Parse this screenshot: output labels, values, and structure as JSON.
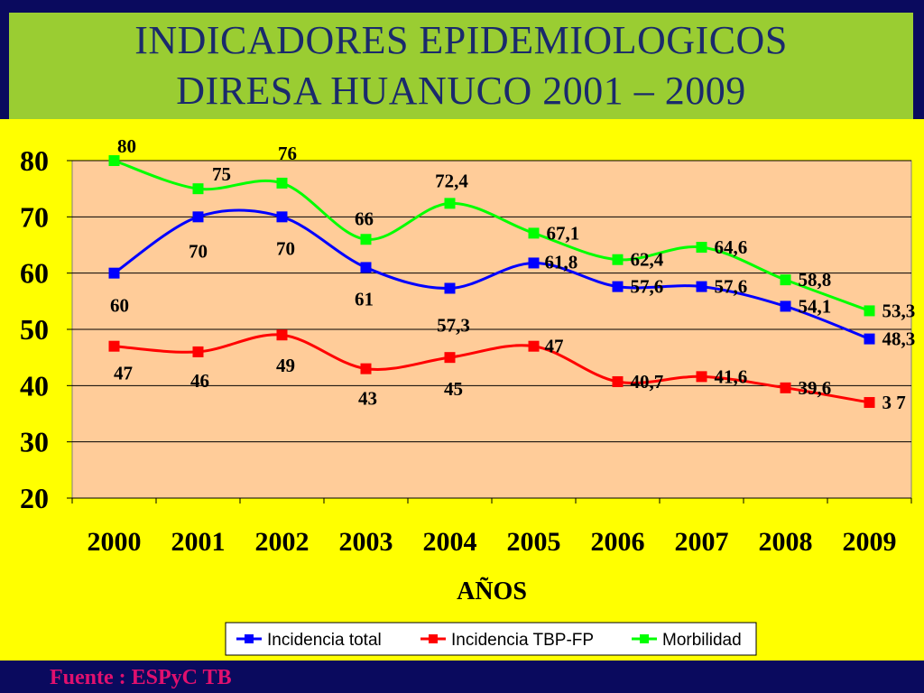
{
  "title": {
    "line1": "INDICADORES EPIDEMIOLOGICOS",
    "line2": "DIRESA HUANUCO 2001 – 2009"
  },
  "source": "Fuente : ESPyC TB",
  "colors": {
    "background": "#0a0a5e",
    "title_band": "#9acd32",
    "title_text": "#1a2a6c",
    "chart_area": "#ffff00",
    "plot_area": "#ffcc99",
    "source_text": "#e0106e"
  },
  "chart_data": {
    "type": "line",
    "xlabel": "AÑOS",
    "ylabel": "",
    "categories": [
      "2000",
      "2001",
      "2002",
      "2003",
      "2004",
      "2005",
      "2006",
      "2007",
      "2008",
      "2009"
    ],
    "ylim": [
      20,
      80
    ],
    "yticks": [
      "20",
      "30",
      "40",
      "50",
      "60",
      "70",
      "80"
    ],
    "grid": true,
    "legend_position": "bottom",
    "series": [
      {
        "name": "Incidencia total",
        "color": "#0000ff",
        "values": [
          60,
          70,
          70,
          61,
          57.3,
          61.8,
          57.6,
          57.6,
          54.1,
          48.3
        ],
        "labels": [
          "60",
          "70",
          "70",
          "61",
          "57,3",
          "61,8",
          "57,6",
          "57,6",
          "54,1",
          "48,3"
        ]
      },
      {
        "name": "Incidencia TBP-FP",
        "color": "#ff0000",
        "values": [
          47,
          46,
          49,
          43,
          45,
          47,
          40.7,
          41.6,
          39.6,
          37
        ],
        "labels": [
          "47",
          "46",
          "49",
          "43",
          "45",
          "47",
          "40,7",
          "41,6",
          "39,6",
          "3 7"
        ]
      },
      {
        "name": "Morbilidad",
        "color": "#00ff00",
        "values": [
          80,
          75,
          76,
          66,
          72.4,
          67.1,
          62.4,
          64.6,
          58.8,
          53.3
        ],
        "labels": [
          "80",
          "75",
          "76",
          "66",
          "72,4",
          "67,1",
          "62,4",
          "64,6",
          "58,8",
          "53,3"
        ]
      }
    ]
  }
}
